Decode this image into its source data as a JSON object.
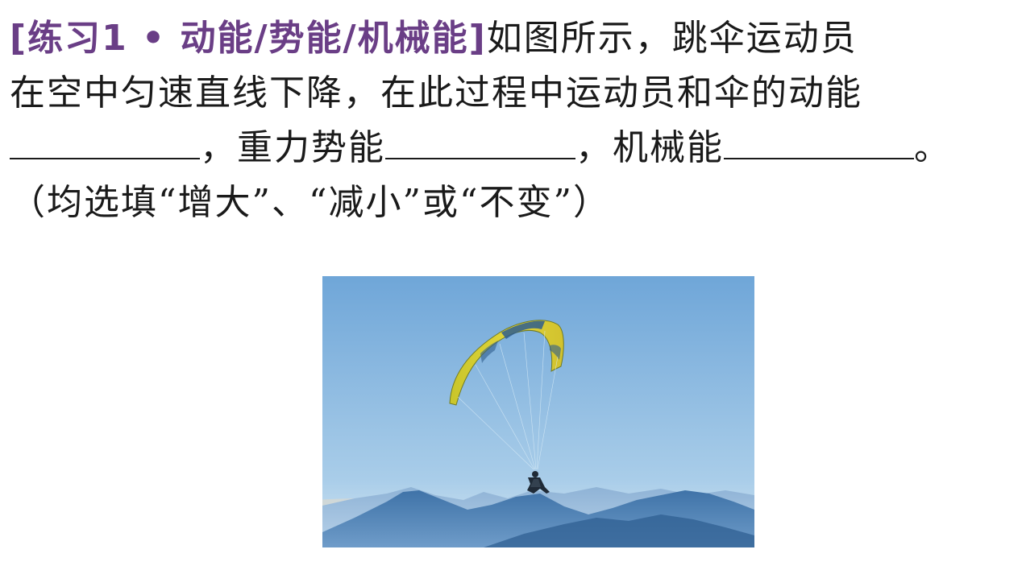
{
  "question": {
    "tag": "[练习1 • 动能/势能/机械能]",
    "line1_text": "如图所示，跳伞运动员",
    "line2_text": "在空中匀速直线下降，在此过程中运动员和伞的动能",
    "line3_sep1": "，重力势能",
    "line3_sep2": "，机械能",
    "line3_end": "。",
    "line4_text": "（均选填“增大”、“减小”或“不变”）"
  },
  "figure": {
    "subject": "paraglider-over-mountains",
    "colors": {
      "sky_top": "#6fa6d8",
      "sky_bottom": "#bcdaf0",
      "mountain_far": "#7fa8cf",
      "mountain_near": "#3f73a8",
      "canopy_yellow": "#d6c92e",
      "canopy_blue": "#2e5d8e"
    }
  }
}
